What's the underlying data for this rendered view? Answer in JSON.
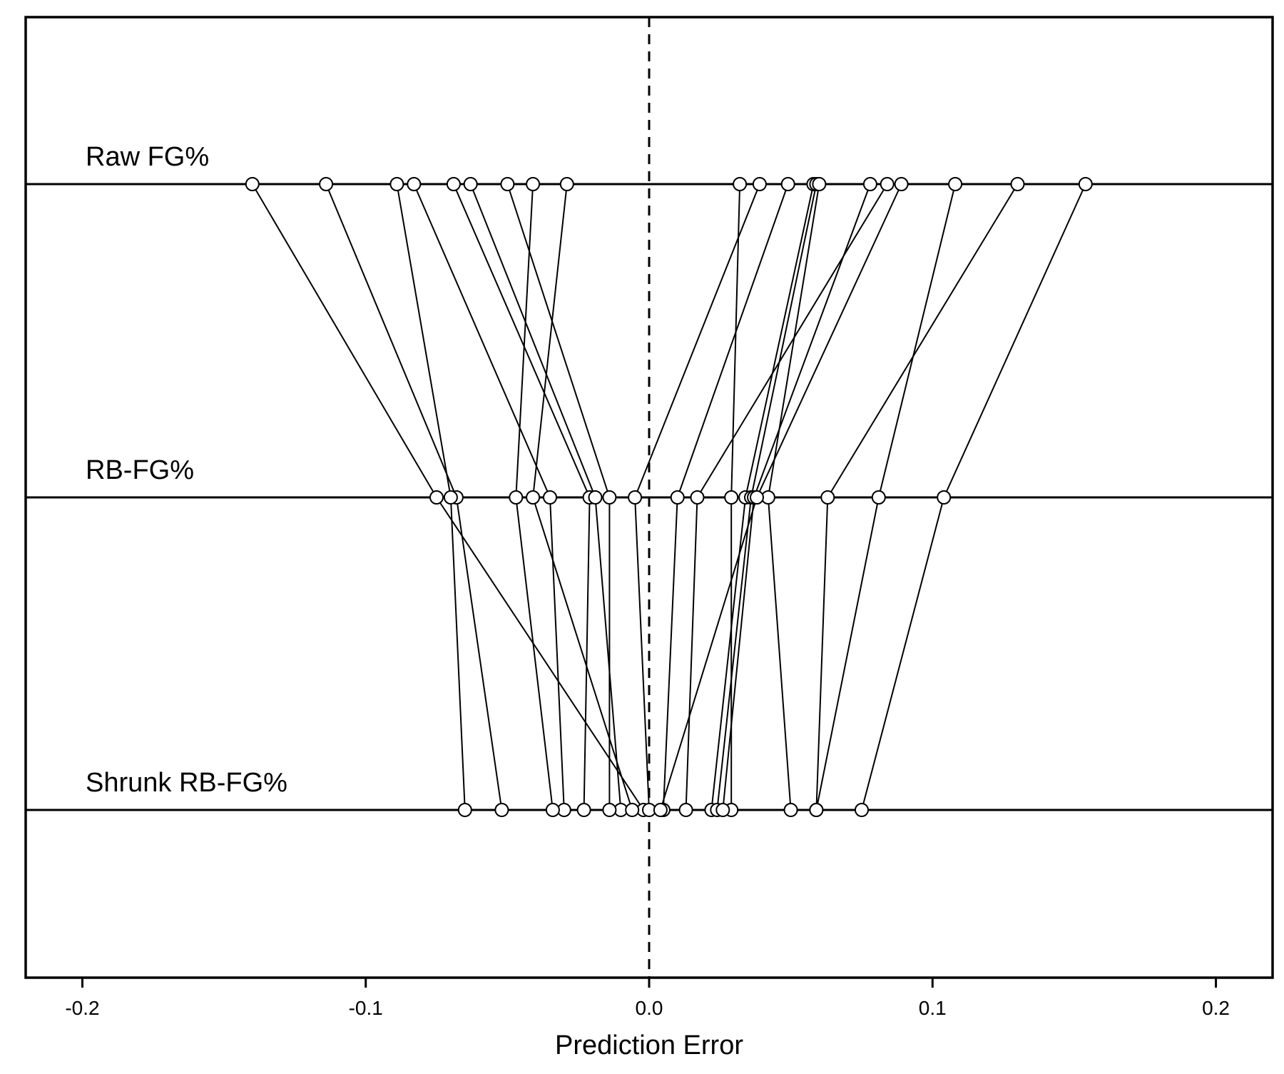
{
  "chart_data": {
    "type": "scatter",
    "title": "",
    "xlabel": "Prediction Error",
    "ylabel": "",
    "xlim": [
      -0.22,
      0.22
    ],
    "xticks": [
      -0.2,
      -0.1,
      0.0,
      0.1,
      0.2
    ],
    "xtick_labels": [
      "-0.2",
      "-0.1",
      "0.0",
      "0.1",
      "0.2"
    ],
    "reference_line": {
      "x": 0.0,
      "style": "dashed"
    },
    "grid": false,
    "legend": "none",
    "levels": [
      "Raw FG%",
      "RB-FG%",
      "Shrunk RB-FG%"
    ],
    "players": [
      {
        "raw": -0.14,
        "rb": -0.075,
        "shrunk": -0.002
      },
      {
        "raw": -0.114,
        "rb": -0.068,
        "shrunk": -0.052
      },
      {
        "raw": -0.089,
        "rb": -0.07,
        "shrunk": -0.065
      },
      {
        "raw": -0.083,
        "rb": -0.035,
        "shrunk": -0.03
      },
      {
        "raw": -0.069,
        "rb": -0.021,
        "shrunk": -0.023
      },
      {
        "raw": -0.063,
        "rb": -0.019,
        "shrunk": -0.01
      },
      {
        "raw": -0.05,
        "rb": -0.014,
        "shrunk": -0.014
      },
      {
        "raw": -0.041,
        "rb": -0.047,
        "shrunk": -0.034
      },
      {
        "raw": -0.029,
        "rb": -0.041,
        "shrunk": -0.006
      },
      {
        "raw": 0.032,
        "rb": 0.029,
        "shrunk": 0.029
      },
      {
        "raw": 0.039,
        "rb": -0.005,
        "shrunk": 0.0
      },
      {
        "raw": 0.049,
        "rb": 0.01,
        "shrunk": 0.005
      },
      {
        "raw": 0.058,
        "rb": 0.034,
        "shrunk": 0.022
      },
      {
        "raw": 0.059,
        "rb": 0.036,
        "shrunk": 0.024
      },
      {
        "raw": 0.06,
        "rb": 0.042,
        "shrunk": 0.05
      },
      {
        "raw": 0.078,
        "rb": 0.037,
        "shrunk": 0.026
      },
      {
        "raw": 0.084,
        "rb": 0.017,
        "shrunk": 0.013
      },
      {
        "raw": 0.089,
        "rb": 0.038,
        "shrunk": 0.004
      },
      {
        "raw": 0.108,
        "rb": 0.081,
        "shrunk": 0.059
      },
      {
        "raw": 0.13,
        "rb": 0.063,
        "shrunk": 0.059
      },
      {
        "raw": 0.154,
        "rb": 0.104,
        "shrunk": 0.075
      }
    ],
    "colors": {
      "line": "#000000",
      "marker_fill": "#ffffff"
    }
  }
}
